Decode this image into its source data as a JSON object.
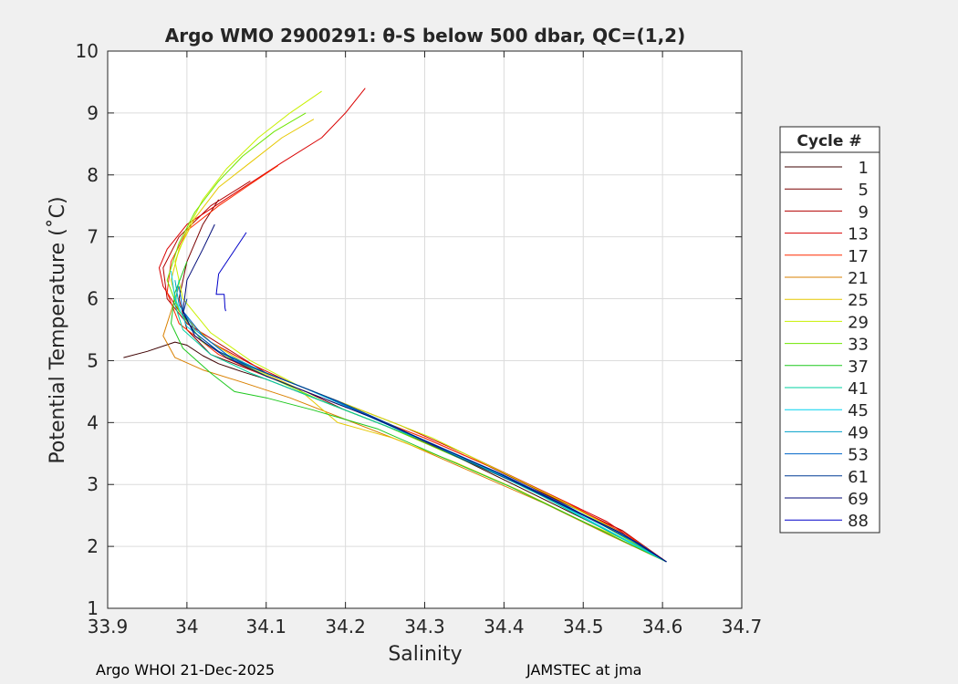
{
  "chart_data": {
    "type": "line",
    "title": "Argo WMO 2900291: θ-S below 500 dbar,  QC=(1,2)",
    "xlabel": "Salinity",
    "ylabel": "Potential Temperature (˚C)",
    "xlim": [
      33.9,
      34.7
    ],
    "ylim": [
      1,
      10
    ],
    "xticks": [
      33.9,
      34.0,
      34.1,
      34.2,
      34.3,
      34.4,
      34.5,
      34.6,
      34.7
    ],
    "xtick_labels": [
      "33.9",
      "34",
      "34.1",
      "34.2",
      "34.3",
      "34.4",
      "34.5",
      "34.6",
      "34.7"
    ],
    "yticks": [
      1,
      2,
      3,
      4,
      5,
      6,
      7,
      8,
      9,
      10
    ],
    "ytick_labels": [
      "1",
      "2",
      "3",
      "4",
      "5",
      "6",
      "7",
      "8",
      "9",
      "10"
    ],
    "grid": true,
    "legend_title": "Cycle #",
    "legend_position": "outside-right",
    "series": [
      {
        "name": "1",
        "color": "#3d0000",
        "x": [
          33.92,
          33.95,
          33.985,
          34.0,
          34.02,
          34.04,
          34.07,
          34.1,
          34.14,
          34.18,
          34.25,
          34.34,
          34.42,
          34.5,
          34.6
        ],
        "y": [
          5.05,
          5.15,
          5.3,
          5.25,
          5.08,
          4.95,
          4.82,
          4.7,
          4.5,
          4.3,
          3.95,
          3.45,
          2.95,
          2.45,
          1.8
        ]
      },
      {
        "name": "5",
        "color": "#7a0000",
        "x": [
          34.04,
          34.02,
          34.0,
          33.99,
          34.0,
          34.03,
          34.07,
          34.11,
          34.15,
          34.2,
          34.28,
          34.36,
          34.45,
          34.55,
          34.605
        ],
        "y": [
          7.6,
          7.2,
          6.6,
          6.0,
          5.5,
          5.1,
          4.9,
          4.7,
          4.5,
          4.2,
          3.8,
          3.35,
          2.85,
          2.25,
          1.75
        ]
      },
      {
        "name": "9",
        "color": "#b30000",
        "x": [
          34.08,
          34.03,
          33.99,
          33.97,
          33.975,
          34.0,
          34.05,
          34.1,
          34.16,
          34.22,
          34.3,
          34.38,
          34.46,
          34.55,
          34.605
        ],
        "y": [
          7.9,
          7.5,
          7.0,
          6.5,
          6.0,
          5.6,
          5.2,
          4.8,
          4.5,
          4.15,
          3.75,
          3.3,
          2.8,
          2.25,
          1.75
        ]
      },
      {
        "name": "13",
        "color": "#d90000",
        "x": [
          34.225,
          34.2,
          34.17,
          34.12,
          34.06,
          34.0,
          33.975,
          33.965,
          33.97,
          33.99,
          34.03,
          34.08,
          34.13,
          34.19,
          34.27,
          34.35,
          34.44,
          34.53,
          34.605
        ],
        "y": [
          9.4,
          9.0,
          8.6,
          8.2,
          7.7,
          7.2,
          6.8,
          6.5,
          6.2,
          5.8,
          5.3,
          4.95,
          4.65,
          4.35,
          3.95,
          3.5,
          2.95,
          2.4,
          1.75
        ]
      },
      {
        "name": "17",
        "color": "#ff2a00",
        "x": [
          34.115,
          34.08,
          34.04,
          34.0,
          33.98,
          33.975,
          33.99,
          34.04,
          34.09,
          34.15,
          34.22,
          34.3,
          34.39,
          34.48,
          34.56,
          34.605
        ],
        "y": [
          8.15,
          7.85,
          7.5,
          7.1,
          6.6,
          6.1,
          5.6,
          5.1,
          4.8,
          4.5,
          4.15,
          3.75,
          3.25,
          2.7,
          2.15,
          1.75
        ]
      },
      {
        "name": "21",
        "color": "#d98000",
        "x": [
          33.99,
          33.98,
          33.97,
          33.985,
          34.02,
          34.07,
          34.13,
          34.2,
          34.28,
          34.36,
          34.45,
          34.53,
          34.605
        ],
        "y": [
          6.2,
          5.8,
          5.4,
          5.05,
          4.85,
          4.65,
          4.4,
          4.05,
          3.65,
          3.2,
          2.7,
          2.2,
          1.75
        ]
      },
      {
        "name": "25",
        "color": "#e6c800",
        "x": [
          34.16,
          34.12,
          34.08,
          34.04,
          34.01,
          33.99,
          33.98,
          33.99,
          34.03,
          34.08,
          34.14,
          34.19,
          34.26,
          34.34,
          34.42,
          34.5,
          34.58,
          34.605
        ],
        "y": [
          8.9,
          8.6,
          8.2,
          7.8,
          7.3,
          6.8,
          6.3,
          5.8,
          5.3,
          4.9,
          4.55,
          4.0,
          3.75,
          3.35,
          2.9,
          2.4,
          1.95,
          1.75
        ]
      },
      {
        "name": "29",
        "color": "#c8f000",
        "x": [
          34.17,
          34.13,
          34.09,
          34.05,
          34.02,
          34.0,
          33.985,
          33.995,
          34.03,
          34.08,
          34.14,
          34.22,
          34.31,
          34.39,
          34.47,
          34.55,
          34.605
        ],
        "y": [
          9.35,
          9.0,
          8.6,
          8.1,
          7.6,
          7.1,
          6.6,
          6.0,
          5.45,
          5.0,
          4.6,
          4.2,
          3.75,
          3.25,
          2.75,
          2.2,
          1.75
        ]
      },
      {
        "name": "33",
        "color": "#6ee600",
        "x": [
          34.15,
          34.11,
          34.07,
          34.04,
          34.01,
          33.99,
          33.975,
          33.99,
          34.02,
          34.06,
          34.11,
          34.17,
          34.25,
          34.33,
          34.42,
          34.51,
          34.605
        ],
        "y": [
          9.0,
          8.7,
          8.3,
          7.9,
          7.4,
          6.9,
          6.3,
          5.8,
          5.3,
          5.0,
          4.7,
          4.35,
          3.95,
          3.5,
          3.0,
          2.45,
          1.75
        ]
      },
      {
        "name": "37",
        "color": "#1ec81e",
        "x": [
          34.0,
          33.985,
          33.98,
          33.995,
          34.03,
          34.06,
          34.1,
          34.16,
          34.24,
          34.32,
          34.41,
          34.5,
          34.605
        ],
        "y": [
          6.6,
          6.1,
          5.6,
          5.2,
          4.8,
          4.5,
          4.4,
          4.2,
          3.9,
          3.45,
          2.95,
          2.4,
          1.75
        ]
      },
      {
        "name": "41",
        "color": "#00d2a0",
        "x": [
          33.99,
          33.985,
          33.995,
          34.03,
          34.08,
          34.14,
          34.21,
          34.29,
          34.37,
          34.45,
          34.53,
          34.605
        ],
        "y": [
          6.3,
          5.9,
          5.5,
          5.1,
          4.8,
          4.5,
          4.15,
          3.75,
          3.3,
          2.8,
          2.25,
          1.75
        ]
      },
      {
        "name": "45",
        "color": "#00d2f0",
        "x": [
          33.98,
          33.985,
          34.0,
          34.04,
          34.09,
          34.15,
          34.22,
          34.3,
          34.38,
          34.46,
          34.54,
          34.605
        ],
        "y": [
          6.45,
          6.0,
          5.55,
          5.15,
          4.85,
          4.55,
          4.15,
          3.7,
          3.25,
          2.75,
          2.2,
          1.75
        ]
      },
      {
        "name": "49",
        "color": "#00a0c8",
        "x": [
          33.985,
          33.99,
          34.01,
          34.05,
          34.1,
          34.16,
          34.23,
          34.31,
          34.39,
          34.47,
          34.55,
          34.605
        ],
        "y": [
          6.3,
          5.9,
          5.5,
          5.1,
          4.8,
          4.5,
          4.1,
          3.65,
          3.2,
          2.7,
          2.2,
          1.75
        ]
      },
      {
        "name": "53",
        "color": "#0064c8",
        "x": [
          33.99,
          33.995,
          34.02,
          34.06,
          34.11,
          34.17,
          34.24,
          34.32,
          34.4,
          34.48,
          34.56,
          34.605
        ],
        "y": [
          6.2,
          5.8,
          5.4,
          5.0,
          4.75,
          4.45,
          4.05,
          3.6,
          3.15,
          2.65,
          2.1,
          1.75
        ]
      },
      {
        "name": "61",
        "color": "#003c96",
        "x": [
          34.0,
          33.995,
          34.01,
          34.04,
          34.08,
          34.13,
          34.19,
          34.26,
          34.34,
          34.42,
          34.5,
          34.57,
          34.605
        ],
        "y": [
          6.0,
          5.75,
          5.45,
          5.15,
          4.9,
          4.65,
          4.35,
          3.95,
          3.45,
          3.0,
          2.5,
          2.05,
          1.75
        ]
      },
      {
        "name": "69",
        "color": "#000a78",
        "x": [
          34.035,
          34.02,
          34.0,
          33.995,
          34.01,
          34.05,
          34.1,
          34.16,
          34.23,
          34.31,
          34.39,
          34.47,
          34.55,
          34.605
        ],
        "y": [
          7.2,
          6.8,
          6.3,
          5.8,
          5.4,
          5.05,
          4.75,
          4.45,
          4.1,
          3.65,
          3.2,
          2.7,
          2.2,
          1.75
        ]
      },
      {
        "name": "88",
        "color": "#0000c8",
        "x": [
          34.075,
          34.04,
          34.037,
          34.04,
          34.047,
          34.048,
          34.049
        ],
        "y": [
          7.07,
          6.4,
          6.07,
          6.07,
          6.07,
          5.85,
          5.8
        ]
      }
    ]
  },
  "footer": {
    "left": "Argo WHOI 21-Dec-2025",
    "right": "JAMSTEC at jma"
  }
}
